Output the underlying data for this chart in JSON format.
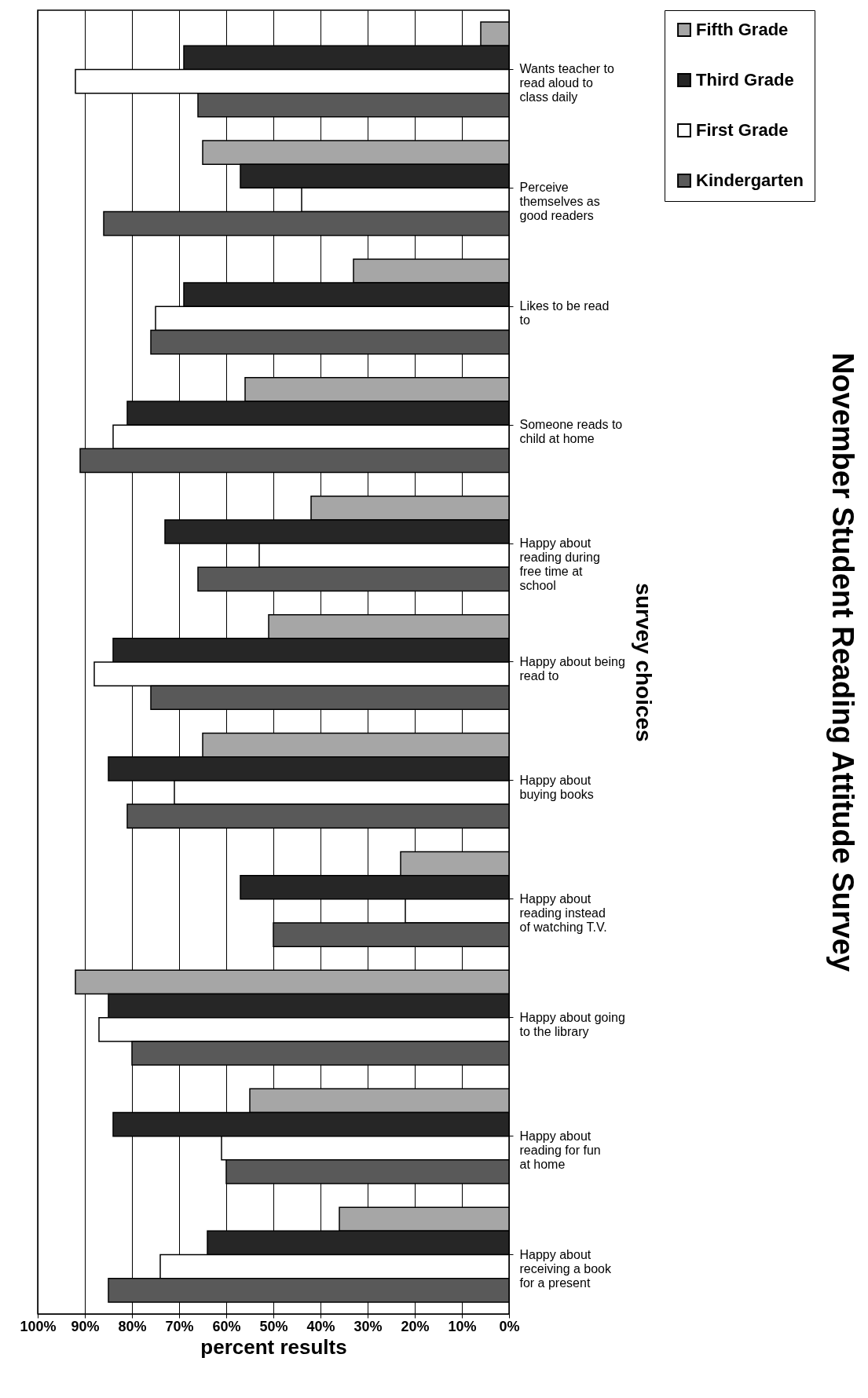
{
  "chart_data": {
    "type": "bar",
    "orientation": "horizontal",
    "title": "November Student Reading Attitude Survey",
    "xlabel": "percent results",
    "ylabel": "survey choices",
    "categories": [
      "Wants teacher to read aloud to class daily",
      "Perceive themselves as good readers",
      "Likes to be read to",
      "Someone reads to child at home",
      "Happy about reading during free time at school",
      "Happy about being read to",
      "Happy about buying books",
      "Happy about reading instead of watching T.V.",
      "Happy about going to the library",
      "Happy about reading for fun at home",
      "Happy about receiving a book for a present"
    ],
    "series": [
      {
        "name": "Fifth Grade",
        "color": "#a6a6a6",
        "values": [
          6,
          65,
          33,
          56,
          42,
          51,
          65,
          23,
          92,
          55,
          36
        ]
      },
      {
        "name": "Third Grade",
        "color": "#262626",
        "values": [
          69,
          57,
          69,
          81,
          73,
          84,
          85,
          57,
          85,
          84,
          64
        ]
      },
      {
        "name": "First Grade",
        "color": "#ffffff",
        "values": [
          92,
          44,
          75,
          84,
          53,
          88,
          71,
          22,
          87,
          61,
          74
        ]
      },
      {
        "name": "Kindergarten",
        "color": "#595959",
        "values": [
          66,
          86,
          76,
          91,
          66,
          76,
          81,
          50,
          80,
          60,
          85
        ]
      }
    ],
    "xlim": [
      100,
      0
    ],
    "xticks": [
      {
        "value": 100,
        "label": "100%"
      },
      {
        "value": 90,
        "label": "90%"
      },
      {
        "value": 80,
        "label": "80%"
      },
      {
        "value": 70,
        "label": "70%"
      },
      {
        "value": 60,
        "label": "60%"
      },
      {
        "value": 50,
        "label": "50%"
      },
      {
        "value": 40,
        "label": "40%"
      },
      {
        "value": 30,
        "label": "30%"
      },
      {
        "value": 20,
        "label": "20%"
      },
      {
        "value": 10,
        "label": "10%"
      },
      {
        "value": 0,
        "label": "0%"
      }
    ],
    "grid": "x",
    "legend": "right"
  }
}
